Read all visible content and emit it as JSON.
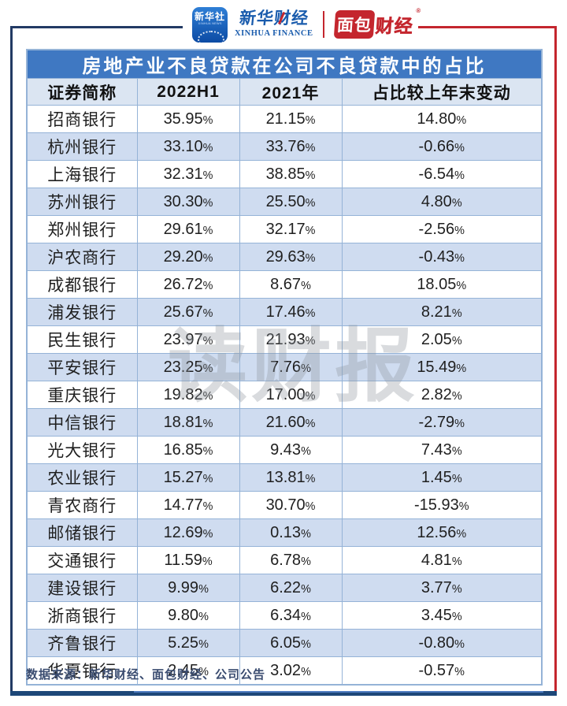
{
  "brand": {
    "xinhua_app": {
      "name": "新华社",
      "subtitle": "XINHUA NEWS"
    },
    "xinhua_finance": {
      "cn": "新华财经",
      "en": "XINHUA FINANCE"
    },
    "bread_finance": {
      "left": "面包",
      "right": "财经",
      "registered": "®"
    }
  },
  "table": {
    "title": "房地产业不良贷款在公司不良贷款中的占比",
    "columns": [
      "证券简称",
      "2022H1",
      "2021年",
      "占比较上年末变动"
    ],
    "rows": [
      [
        "招商银行",
        "35.95%",
        "21.15%",
        "14.80%"
      ],
      [
        "杭州银行",
        "33.10%",
        "33.76%",
        "-0.66%"
      ],
      [
        "上海银行",
        "32.31%",
        "38.85%",
        "-6.54%"
      ],
      [
        "苏州银行",
        "30.30%",
        "25.50%",
        "4.80%"
      ],
      [
        "郑州银行",
        "29.61%",
        "32.17%",
        "-2.56%"
      ],
      [
        "沪农商行",
        "29.20%",
        "29.63%",
        "-0.43%"
      ],
      [
        "成都银行",
        "26.72%",
        "8.67%",
        "18.05%"
      ],
      [
        "浦发银行",
        "25.67%",
        "17.46%",
        "8.21%"
      ],
      [
        "民生银行",
        "23.97%",
        "21.93%",
        "2.05%"
      ],
      [
        "平安银行",
        "23.25%",
        "7.76%",
        "15.49%"
      ],
      [
        "重庆银行",
        "19.82%",
        "17.00%",
        "2.82%"
      ],
      [
        "中信银行",
        "18.81%",
        "21.60%",
        "-2.79%"
      ],
      [
        "光大银行",
        "16.85%",
        "9.43%",
        "7.43%"
      ],
      [
        "农业银行",
        "15.27%",
        "13.81%",
        "1.45%"
      ],
      [
        "青农商行",
        "14.77%",
        "30.70%",
        "-15.93%"
      ],
      [
        "邮储银行",
        "12.69%",
        "0.13%",
        "12.56%"
      ],
      [
        "交通银行",
        "11.59%",
        "6.78%",
        "4.81%"
      ],
      [
        "建设银行",
        "9.99%",
        "6.22%",
        "3.77%"
      ],
      [
        "浙商银行",
        "9.80%",
        "6.34%",
        "3.45%"
      ],
      [
        "齐鲁银行",
        "5.25%",
        "6.05%",
        "-0.80%"
      ],
      [
        "华夏银行",
        "2.45%",
        "3.02%",
        "-0.57%"
      ]
    ]
  },
  "watermark": "读财报",
  "footer": {
    "source": "数据来源：新华财经、面包财经、公司公告"
  },
  "colors": {
    "title_bar": "#3f78c2",
    "header_row": "#dbe5f2",
    "alt_row": "#cfdcf0",
    "cell_border": "#95b3d7",
    "frame_navy": "#223a64",
    "frame_red": "#c4262e",
    "bottom_bar": "#1d4778",
    "source_text": "#3a4c70"
  }
}
